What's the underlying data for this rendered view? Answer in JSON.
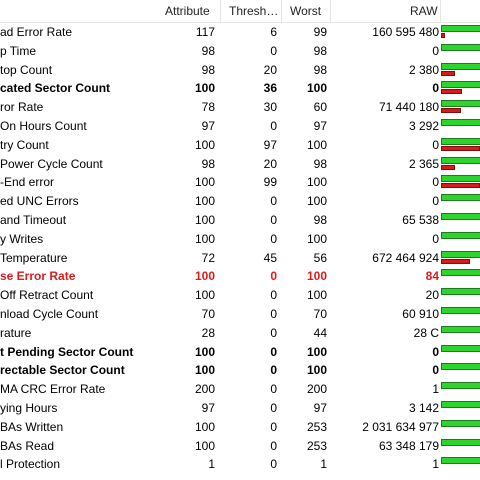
{
  "columns": {
    "attribute": "Attribute",
    "threshold": "Thresh…",
    "worst": "Worst",
    "raw": "RAW"
  },
  "colors": {
    "normal_bar": "#2dd42d",
    "raw_bar": "#d41c1c",
    "warning_text": "#d81e1e"
  },
  "rows": [
    {
      "name": "ad Error Rate",
      "attribute": "117",
      "threshold": "6",
      "worst": "99",
      "raw": "160 595 480",
      "style": "normal",
      "red_fraction": 0.08
    },
    {
      "name": "p Time",
      "attribute": "98",
      "threshold": "0",
      "worst": "98",
      "raw": "0",
      "style": "normal",
      "red_fraction": 0
    },
    {
      "name": "top Count",
      "attribute": "98",
      "threshold": "20",
      "worst": "98",
      "raw": "2 380",
      "style": "normal",
      "red_fraction": 0.35
    },
    {
      "name": "cated Sector Count",
      "attribute": "100",
      "threshold": "36",
      "worst": "100",
      "raw": "0",
      "style": "bold",
      "red_fraction": 0.55
    },
    {
      "name": "ror Rate",
      "attribute": "78",
      "threshold": "30",
      "worst": "60",
      "raw": "71 440 180",
      "style": "normal",
      "red_fraction": 0.5
    },
    {
      "name": "On Hours Count",
      "attribute": "97",
      "threshold": "0",
      "worst": "97",
      "raw": "3 292",
      "style": "normal",
      "red_fraction": 0
    },
    {
      "name": "try Count",
      "attribute": "100",
      "threshold": "97",
      "worst": "100",
      "raw": "0",
      "style": "normal",
      "red_fraction": 1.0
    },
    {
      "name": "Power Cycle Count",
      "attribute": "98",
      "threshold": "20",
      "worst": "98",
      "raw": "2 365",
      "style": "normal",
      "red_fraction": 0.35
    },
    {
      "name": "-End error",
      "attribute": "100",
      "threshold": "99",
      "worst": "100",
      "raw": "0",
      "style": "normal",
      "red_fraction": 1.0
    },
    {
      "name": "ed UNC Errors",
      "attribute": "100",
      "threshold": "0",
      "worst": "100",
      "raw": "0",
      "style": "normal",
      "red_fraction": 0
    },
    {
      "name": "and Timeout",
      "attribute": "100",
      "threshold": "0",
      "worst": "98",
      "raw": "65 538",
      "style": "normal",
      "red_fraction": 0
    },
    {
      "name": "y Writes",
      "attribute": "100",
      "threshold": "0",
      "worst": "100",
      "raw": "0",
      "style": "normal",
      "red_fraction": 0
    },
    {
      "name": "Temperature",
      "attribute": "72",
      "threshold": "45",
      "worst": "56",
      "raw": "672 464 924",
      "style": "normal",
      "red_fraction": 0.75
    },
    {
      "name": "se Error Rate",
      "attribute": "100",
      "threshold": "0",
      "worst": "100",
      "raw": "84",
      "style": "warning",
      "red_fraction": 0
    },
    {
      "name": "Off Retract Count",
      "attribute": "100",
      "threshold": "0",
      "worst": "100",
      "raw": "20",
      "style": "normal",
      "red_fraction": 0
    },
    {
      "name": "nload Cycle Count",
      "attribute": "70",
      "threshold": "0",
      "worst": "70",
      "raw": "60 910",
      "style": "normal",
      "red_fraction": 0
    },
    {
      "name": "rature",
      "attribute": "28",
      "threshold": "0",
      "worst": "44",
      "raw": "28 C",
      "style": "normal",
      "red_fraction": 0
    },
    {
      "name": "t Pending Sector Count",
      "attribute": "100",
      "threshold": "0",
      "worst": "100",
      "raw": "0",
      "style": "bold",
      "red_fraction": 0
    },
    {
      "name": "rectable Sector Count",
      "attribute": "100",
      "threshold": "0",
      "worst": "100",
      "raw": "0",
      "style": "bold",
      "red_fraction": 0
    },
    {
      "name": "MA CRC Error Rate",
      "attribute": "200",
      "threshold": "0",
      "worst": "200",
      "raw": "1",
      "style": "normal",
      "red_fraction": 0
    },
    {
      "name": "ying Hours",
      "attribute": "97",
      "threshold": "0",
      "worst": "97",
      "raw": "3 142",
      "style": "normal",
      "red_fraction": 0
    },
    {
      "name": "BAs Written",
      "attribute": "100",
      "threshold": "0",
      "worst": "253",
      "raw": "2 031 634 977",
      "style": "normal",
      "red_fraction": 0
    },
    {
      "name": "BAs Read",
      "attribute": "100",
      "threshold": "0",
      "worst": "253",
      "raw": "63 348 179",
      "style": "normal",
      "red_fraction": 0
    },
    {
      "name": "l Protection",
      "attribute": "1",
      "threshold": "0",
      "worst": "1",
      "raw": "1",
      "style": "normal",
      "red_fraction": 0
    }
  ]
}
